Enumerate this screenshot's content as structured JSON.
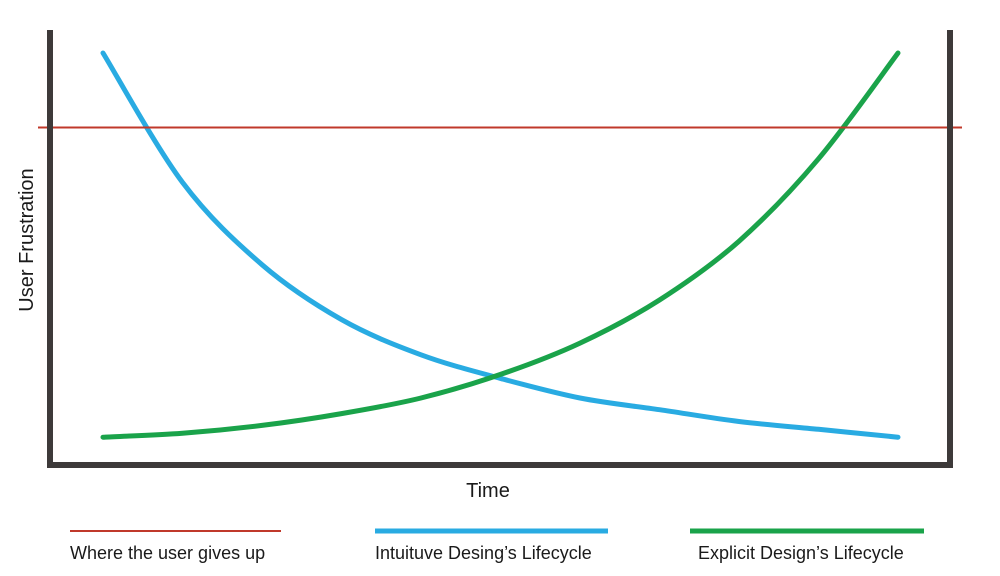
{
  "chart_data": {
    "type": "line",
    "title": "",
    "xlabel": "Time",
    "ylabel": "User Frustration",
    "xlim": [
      0,
      1
    ],
    "ylim": [
      0,
      1
    ],
    "grid": false,
    "legend_position": "bottom",
    "threshold": {
      "name": "Where the user gives up",
      "value": 0.81,
      "color": "#c0392b"
    },
    "series": [
      {
        "name": "Intuituve Desing’s Lifecycle",
        "color": "#29abe2",
        "x": [
          0,
          0.1,
          0.2,
          0.3,
          0.4,
          0.5,
          0.6,
          0.7,
          0.8,
          0.9,
          1.0
        ],
        "values": [
          1.0,
          0.67,
          0.46,
          0.32,
          0.23,
          0.17,
          0.12,
          0.09,
          0.06,
          0.04,
          0.02
        ]
      },
      {
        "name": "Explicit Design’s Lifecycle",
        "color": "#1aa34a",
        "x": [
          0,
          0.1,
          0.2,
          0.3,
          0.4,
          0.5,
          0.6,
          0.7,
          0.8,
          0.9,
          1.0
        ],
        "values": [
          0.02,
          0.03,
          0.05,
          0.08,
          0.12,
          0.18,
          0.26,
          0.37,
          0.52,
          0.73,
          1.0
        ]
      }
    ]
  }
}
